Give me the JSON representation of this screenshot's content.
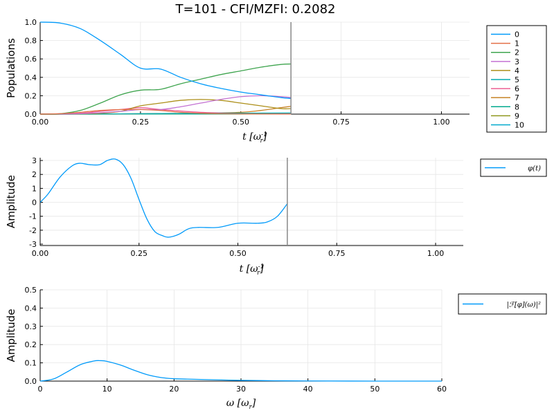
{
  "title": "T=101 - CFI/MZFI: 0.2082",
  "colors": {
    "c0": "#009AFA",
    "c1": "#E36F47",
    "c2": "#3EA44E",
    "c3": "#C371D2",
    "c4": "#AC8E18",
    "c5": "#00AAAE",
    "c6": "#ED5E93",
    "c7": "#C68225",
    "c8": "#00A98D",
    "c9": "#8E971D",
    "c10": "#00A9CD",
    "vline": "#888888",
    "grid": "#e6e6e6",
    "axis": "#000000"
  },
  "chart_data": [
    {
      "type": "line",
      "ylabel": "Populations",
      "xlabel": "t [ω_r^{-1}]",
      "xlim": [
        0,
        1.07
      ],
      "ylim": [
        0,
        1.0
      ],
      "xticks": [
        0,
        0.25,
        0.5,
        0.75,
        1.0
      ],
      "xtick_labels": [
        "0.00",
        "0.25",
        "0.50",
        "0.75",
        "1.00"
      ],
      "yticks": [
        0,
        0.2,
        0.4,
        0.6,
        0.8,
        1.0
      ],
      "ytick_labels": [
        "0.0",
        "0.2",
        "0.4",
        "0.6",
        "0.8",
        "1.0"
      ],
      "vline": 0.625,
      "legend_position": "right",
      "series": [
        {
          "name": "0",
          "color": "c0",
          "x": [
            0,
            0.05,
            0.1,
            0.15,
            0.2,
            0.25,
            0.3,
            0.35,
            0.4,
            0.45,
            0.5,
            0.55,
            0.6,
            0.625
          ],
          "y": [
            1.0,
            0.99,
            0.93,
            0.8,
            0.65,
            0.5,
            0.49,
            0.4,
            0.33,
            0.28,
            0.24,
            0.21,
            0.18,
            0.17
          ]
        },
        {
          "name": "1",
          "color": "c1",
          "x": [
            0,
            0.05,
            0.1,
            0.15,
            0.2,
            0.25,
            0.3,
            0.35,
            0.4,
            0.45,
            0.5,
            0.55,
            0.6,
            0.625
          ],
          "y": [
            0,
            0.005,
            0.02,
            0.04,
            0.05,
            0.05,
            0.04,
            0.02,
            0.01,
            0.005,
            0.003,
            0.002,
            0.001,
            0.001
          ]
        },
        {
          "name": "2",
          "color": "c2",
          "x": [
            0,
            0.05,
            0.1,
            0.15,
            0.2,
            0.25,
            0.3,
            0.35,
            0.4,
            0.45,
            0.5,
            0.55,
            0.6,
            0.625
          ],
          "y": [
            0,
            0.005,
            0.04,
            0.12,
            0.21,
            0.26,
            0.27,
            0.33,
            0.38,
            0.43,
            0.47,
            0.51,
            0.54,
            0.545
          ]
        },
        {
          "name": "3",
          "color": "c3",
          "x": [
            0,
            0.05,
            0.1,
            0.15,
            0.2,
            0.25,
            0.3,
            0.35,
            0.4,
            0.45,
            0.5,
            0.55,
            0.6,
            0.625
          ],
          "y": [
            0,
            0.001,
            0.005,
            0.015,
            0.03,
            0.05,
            0.05,
            0.08,
            0.12,
            0.16,
            0.19,
            0.2,
            0.19,
            0.18
          ]
        },
        {
          "name": "4",
          "color": "c4",
          "x": [
            0,
            0.05,
            0.1,
            0.15,
            0.2,
            0.25,
            0.3,
            0.35,
            0.4,
            0.45,
            0.5,
            0.55,
            0.6,
            0.625
          ],
          "y": [
            0,
            0.001,
            0.003,
            0.01,
            0.03,
            0.09,
            0.12,
            0.15,
            0.16,
            0.15,
            0.12,
            0.09,
            0.06,
            0.06
          ]
        },
        {
          "name": "5",
          "color": "c5",
          "x": [
            0,
            0.1,
            0.2,
            0.3,
            0.4,
            0.5,
            0.625
          ],
          "y": [
            0,
            0.001,
            0.003,
            0.006,
            0.008,
            0.01,
            0.012
          ]
        },
        {
          "name": "6",
          "color": "c6",
          "x": [
            0,
            0.1,
            0.15,
            0.2,
            0.25,
            0.3,
            0.4,
            0.5,
            0.625
          ],
          "y": [
            0,
            0.01,
            0.03,
            0.05,
            0.07,
            0.05,
            0.02,
            0.01,
            0.005
          ]
        },
        {
          "name": "7",
          "color": "c7",
          "x": [
            0,
            0.1,
            0.2,
            0.3,
            0.4,
            0.5,
            0.55,
            0.6,
            0.625
          ],
          "y": [
            0,
            0.001,
            0.003,
            0.006,
            0.01,
            0.02,
            0.04,
            0.07,
            0.085
          ]
        },
        {
          "name": "8",
          "color": "c8",
          "x": [
            0,
            0.2,
            0.4,
            0.625
          ],
          "y": [
            0,
            0.001,
            0.002,
            0.003
          ]
        },
        {
          "name": "9",
          "color": "c9",
          "x": [
            0,
            0.2,
            0.4,
            0.625
          ],
          "y": [
            0,
            0.001,
            0.002,
            0.003
          ]
        },
        {
          "name": "10",
          "color": "c10",
          "x": [
            0,
            0.2,
            0.4,
            0.625
          ],
          "y": [
            0,
            0.001,
            0.001,
            0.002
          ]
        }
      ]
    },
    {
      "type": "line",
      "ylabel": "Amplitude",
      "xlabel": "t [ω_r^{-1}]",
      "xlim": [
        0,
        1.07
      ],
      "ylim": [
        -3.1,
        3.2
      ],
      "xticks": [
        0,
        0.25,
        0.5,
        0.75,
        1.0
      ],
      "xtick_labels": [
        "0.00",
        "0.25",
        "0.50",
        "0.75",
        "1.00"
      ],
      "yticks": [
        -3,
        -2,
        -1,
        0,
        1,
        2,
        3
      ],
      "ytick_labels": [
        "-3",
        "-2",
        "-1",
        "0",
        "1",
        "2",
        "3"
      ],
      "vline": 0.625,
      "legend_position": "right",
      "series": [
        {
          "name": "φ(t)",
          "color": "c0",
          "x": [
            0,
            0.02,
            0.05,
            0.08,
            0.1,
            0.125,
            0.15,
            0.17,
            0.19,
            0.21,
            0.23,
            0.25,
            0.27,
            0.29,
            0.31,
            0.325,
            0.35,
            0.375,
            0.4,
            0.45,
            0.5,
            0.55,
            0.575,
            0.6,
            0.625
          ],
          "y": [
            0,
            0.6,
            1.8,
            2.6,
            2.8,
            2.7,
            2.7,
            3.0,
            3.1,
            2.7,
            1.7,
            0.2,
            -1.2,
            -2.1,
            -2.4,
            -2.5,
            -2.3,
            -1.9,
            -1.8,
            -1.8,
            -1.5,
            -1.5,
            -1.4,
            -1.0,
            -0.1
          ]
        }
      ]
    },
    {
      "type": "line",
      "ylabel": "Amplitude",
      "xlabel": "ω [ω_r]",
      "xlim": [
        0,
        60
      ],
      "ylim": [
        0,
        0.5
      ],
      "xticks": [
        0,
        10,
        20,
        30,
        40,
        50,
        60
      ],
      "xtick_labels": [
        "0",
        "10",
        "20",
        "30",
        "40",
        "50",
        "60"
      ],
      "yticks": [
        0,
        0.1,
        0.2,
        0.3,
        0.4,
        0.5
      ],
      "ytick_labels": [
        "0.0",
        "0.1",
        "0.2",
        "0.3",
        "0.4",
        "0.5"
      ],
      "legend_position": "right",
      "series": [
        {
          "name": "|ℱ[φ](ω)|²",
          "color": "c0",
          "x": [
            0,
            2,
            4,
            6,
            8,
            9,
            10,
            12,
            14,
            16,
            18,
            20,
            22,
            25,
            30,
            35,
            40,
            50,
            60
          ],
          "y": [
            0,
            0.012,
            0.05,
            0.09,
            0.11,
            0.112,
            0.108,
            0.088,
            0.06,
            0.035,
            0.02,
            0.013,
            0.011,
            0.008,
            0.004,
            0.002,
            0.001,
            0.0,
            0.0
          ]
        }
      ]
    }
  ]
}
